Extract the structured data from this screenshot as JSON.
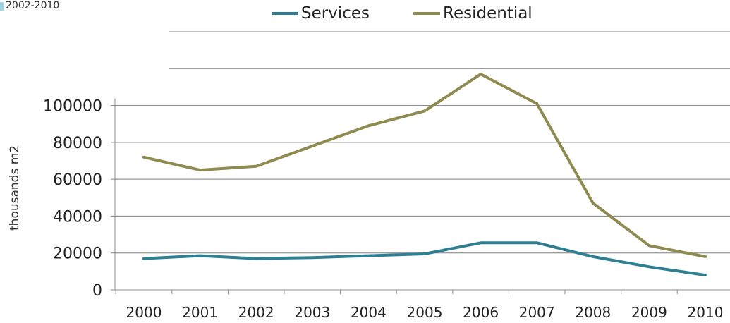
{
  "corner_label": "2002-2010",
  "chart_data": {
    "type": "line",
    "title": "",
    "xlabel": "",
    "ylabel": "thousands m2",
    "categories": [
      "2000",
      "2001",
      "2002",
      "2003",
      "2004",
      "2005",
      "2006",
      "2007",
      "2008",
      "2009",
      "2010"
    ],
    "series": [
      {
        "name": "Services",
        "color": "#2e7f91",
        "values": [
          17000,
          18500,
          17000,
          17500,
          18500,
          19500,
          25500,
          25500,
          18000,
          12500,
          8000
        ]
      },
      {
        "name": "Residential",
        "color": "#8f8a4f",
        "values": [
          72000,
          65000,
          67000,
          78000,
          89000,
          97000,
          117000,
          101000,
          47000,
          24000,
          18000
        ]
      }
    ],
    "yticks": [
      0,
      20000,
      40000,
      60000,
      80000,
      100000
    ],
    "ylim": [
      0,
      140000
    ],
    "grid": true,
    "legend": "top"
  }
}
